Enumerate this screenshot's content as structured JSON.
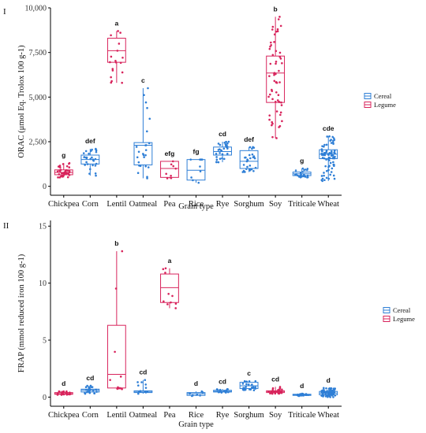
{
  "colors": {
    "cereal": "#2f7fd6",
    "legume": "#d8245c"
  },
  "chart_data": [
    {
      "type": "box",
      "panel_label": "I",
      "xlabel": "Grain type",
      "ylabel": "ORAC (μmol Eq. Trolox 100 g-1)",
      "ylim": [
        -500,
        10000
      ],
      "yticks": [
        0,
        2500,
        5000,
        7500,
        10000
      ],
      "ytick_labels": [
        "0",
        "2,500",
        "5,000",
        "7,500",
        "10,000"
      ],
      "grid": false,
      "legend_position": "right",
      "legend": [
        {
          "label": "Cereal",
          "group": "cereal"
        },
        {
          "label": "Legume",
          "group": "legume"
        }
      ],
      "series": [
        {
          "category": "Chickpea",
          "group": "legume",
          "min": 500,
          "q1": 650,
          "median": 780,
          "q3": 920,
          "max": 1300,
          "letter": "g",
          "n": 40
        },
        {
          "category": "Corn",
          "group": "cereal",
          "min": 600,
          "q1": 1250,
          "median": 1500,
          "q3": 1750,
          "max": 2100,
          "letter": "def",
          "n": 30
        },
        {
          "category": "Lentil",
          "group": "legume",
          "min": 5800,
          "q1": 6950,
          "median": 7600,
          "q3": 8300,
          "max": 8700,
          "letter": "a",
          "n": 18
        },
        {
          "category": "Oatmeal",
          "group": "cereal",
          "min": 450,
          "q1": 1200,
          "median": 2300,
          "q3": 2450,
          "max": 5500,
          "letter": "c",
          "n": 25
        },
        {
          "category": "Pea",
          "group": "legume",
          "min": 450,
          "q1": 500,
          "median": 1000,
          "q3": 1400,
          "max": 1400,
          "letter": "efg",
          "n": 8
        },
        {
          "category": "Rice",
          "group": "cereal",
          "min": 200,
          "q1": 350,
          "median": 900,
          "q3": 1500,
          "max": 1500,
          "letter": "fg",
          "n": 10
        },
        {
          "category": "Rye",
          "group": "cereal",
          "min": 1350,
          "q1": 1750,
          "median": 1950,
          "q3": 2200,
          "max": 2500,
          "letter": "cd",
          "n": 30
        },
        {
          "category": "Sorghum",
          "group": "cereal",
          "min": 800,
          "q1": 1000,
          "median": 1400,
          "q3": 2000,
          "max": 2200,
          "letter": "def",
          "n": 30
        },
        {
          "category": "Soy",
          "group": "legume",
          "min": 2700,
          "q1": 4700,
          "median": 6350,
          "q3": 7300,
          "max": 9500,
          "letter": "b",
          "n": 60
        },
        {
          "category": "Triticale",
          "group": "cereal",
          "min": 500,
          "q1": 600,
          "median": 700,
          "q3": 800,
          "max": 1000,
          "letter": "g",
          "n": 25
        },
        {
          "category": "Wheat",
          "group": "cereal",
          "min": 300,
          "q1": 1550,
          "median": 1800,
          "q3": 2050,
          "max": 2800,
          "letter": "cde",
          "n": 80
        }
      ]
    },
    {
      "type": "box",
      "panel_label": "II",
      "xlabel": "Grain type",
      "ylabel": "FRAP (mmol reduced iron 100 g-1)",
      "ylim": [
        -0.8,
        15.5
      ],
      "yticks": [
        0,
        5,
        10,
        15
      ],
      "ytick_labels": [
        "0",
        "5",
        "10",
        "15"
      ],
      "grid": false,
      "legend_position": "right",
      "legend": [
        {
          "label": "Cereal",
          "group": "cereal"
        },
        {
          "label": "Legume",
          "group": "legume"
        }
      ],
      "series": [
        {
          "category": "Chickpea",
          "group": "legume",
          "min": 0.2,
          "q1": 0.25,
          "median": 0.3,
          "q3": 0.4,
          "max": 0.5,
          "letter": "d",
          "n": 30
        },
        {
          "category": "Corn",
          "group": "cereal",
          "min": 0.3,
          "q1": 0.45,
          "median": 0.6,
          "q3": 0.7,
          "max": 1.0,
          "letter": "cd",
          "n": 25
        },
        {
          "category": "Lentil",
          "group": "legume",
          "min": 0.7,
          "q1": 0.8,
          "median": 2.0,
          "q3": 6.3,
          "max": 12.8,
          "letter": "b",
          "n": 12
        },
        {
          "category": "Oatmeal",
          "group": "cereal",
          "min": 0.3,
          "q1": 0.4,
          "median": 0.45,
          "q3": 0.55,
          "max": 1.5,
          "letter": "cd",
          "n": 12
        },
        {
          "category": "Pea",
          "group": "legume",
          "min": 7.8,
          "q1": 8.3,
          "median": 9.6,
          "q3": 10.8,
          "max": 11.3,
          "letter": "a",
          "n": 10
        },
        {
          "category": "Rice",
          "group": "cereal",
          "min": 0.1,
          "q1": 0.15,
          "median": 0.3,
          "q3": 0.4,
          "max": 0.5,
          "letter": "d",
          "n": 8
        },
        {
          "category": "Rye",
          "group": "cereal",
          "min": 0.4,
          "q1": 0.45,
          "median": 0.5,
          "q3": 0.6,
          "max": 0.7,
          "letter": "cd",
          "n": 20
        },
        {
          "category": "Sorghum",
          "group": "cereal",
          "min": 0.6,
          "q1": 0.75,
          "median": 1.0,
          "q3": 1.3,
          "max": 1.4,
          "letter": "c",
          "n": 25
        },
        {
          "category": "Soy",
          "group": "legume",
          "min": 0.3,
          "q1": 0.4,
          "median": 0.5,
          "q3": 0.55,
          "max": 0.9,
          "letter": "cd",
          "n": 35
        },
        {
          "category": "Triticale",
          "group": "cereal",
          "min": 0.1,
          "q1": 0.15,
          "median": 0.2,
          "q3": 0.25,
          "max": 0.3,
          "letter": "d",
          "n": 20
        },
        {
          "category": "Wheat",
          "group": "cereal",
          "min": 0.0,
          "q1": 0.2,
          "median": 0.35,
          "q3": 0.5,
          "max": 0.8,
          "letter": "d",
          "n": 70
        }
      ]
    }
  ]
}
